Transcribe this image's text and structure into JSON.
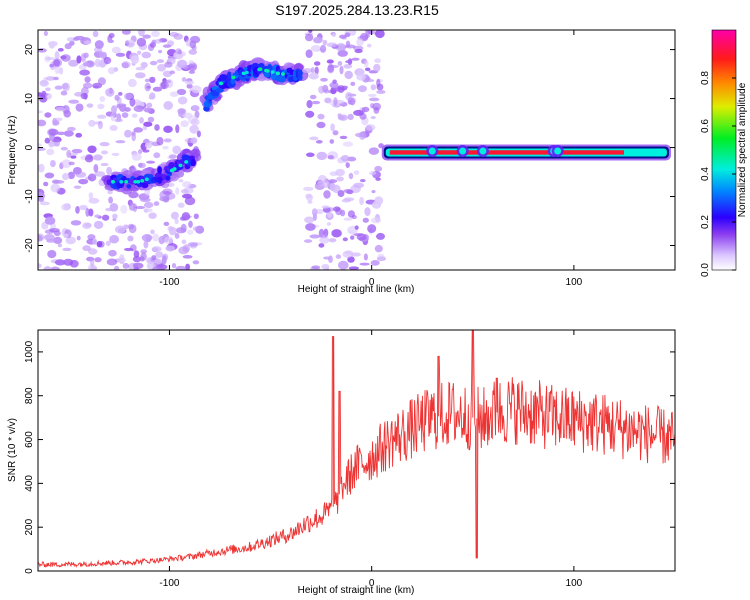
{
  "title": "S197.2025.284.13.23.R15",
  "chart_data": [
    {
      "type": "heatmap",
      "xlabel": "Height of straight line (km)",
      "ylabel": "Frequency (Hz)",
      "xlim": [
        -165,
        150
      ],
      "ylim": [
        -25,
        24
      ],
      "xticks": [
        -100,
        0,
        100
      ],
      "yticks": [
        -20,
        -10,
        0,
        10,
        20
      ],
      "colorbar": {
        "label": "Normalized spectral amplitude",
        "range": [
          0,
          1
        ],
        "ticks": [
          0.0,
          0.2,
          0.4,
          0.6,
          0.8
        ],
        "ticklabels": [
          "0.0",
          "0.2",
          "0.4",
          "0.6",
          "0.8"
        ]
      },
      "features": [
        {
          "name": "scatter-left",
          "x_range": [
            -165,
            -85
          ],
          "y_range": [
            -25,
            24
          ],
          "level": 0.05
        },
        {
          "name": "descending-track",
          "points": [
            [
              -130,
              -7
            ],
            [
              -115,
              -7
            ],
            [
              -100,
              -5
            ],
            [
              -88,
              -2
            ]
          ],
          "level": 0.18
        },
        {
          "name": "upper-track",
          "points": [
            [
              -82,
              9
            ],
            [
              -75,
              13
            ],
            [
              -65,
              15
            ],
            [
              -55,
              16
            ],
            [
              -45,
              15
            ],
            [
              -35,
              15
            ]
          ],
          "level": 0.22
        },
        {
          "name": "scatter-mid",
          "x_range": [
            -32,
            5
          ],
          "y_range": [
            -25,
            24
          ],
          "level": 0.05
        },
        {
          "name": "zero-line",
          "x_range": [
            5,
            148
          ],
          "y": -1,
          "level": 0.95
        }
      ]
    },
    {
      "type": "line",
      "xlabel": "Height of straight line (km)",
      "ylabel": "SNR (10 * v/v)",
      "xlim": [
        -165,
        150
      ],
      "ylim": [
        0,
        1100
      ],
      "xticks": [
        -100,
        0,
        100
      ],
      "yticks": [
        0,
        200,
        400,
        600,
        800,
        1000
      ],
      "series": [
        {
          "name": "SNR",
          "color": "#ee3333",
          "x": [
            -165,
            -150,
            -135,
            -120,
            -105,
            -90,
            -75,
            -60,
            -50,
            -40,
            -32,
            -25,
            -20,
            -17,
            -15,
            -12,
            -8,
            -5,
            0,
            5,
            10,
            15,
            20,
            30,
            40,
            50,
            55,
            60,
            70,
            80,
            90,
            100,
            110,
            120,
            130,
            140,
            150
          ],
          "y": [
            30,
            30,
            35,
            40,
            50,
            65,
            90,
            110,
            140,
            170,
            220,
            250,
            280,
            320,
            380,
            420,
            470,
            490,
            520,
            560,
            600,
            620,
            650,
            700,
            720,
            700,
            690,
            720,
            740,
            720,
            700,
            690,
            680,
            660,
            640,
            620,
            600
          ]
        }
      ],
      "spikes": [
        {
          "x": -19,
          "y": 1070
        },
        {
          "x": -16,
          "y": 820
        },
        {
          "x": 33,
          "y": 980
        },
        {
          "x": 50,
          "y": 1100
        },
        {
          "x": 52,
          "y": 60
        },
        {
          "x": 62,
          "y": 880
        }
      ]
    }
  ]
}
